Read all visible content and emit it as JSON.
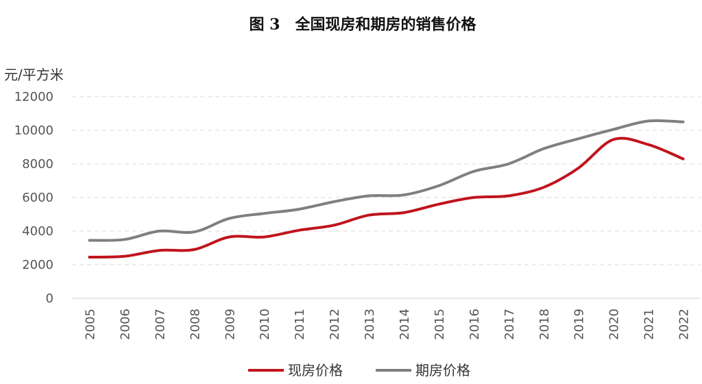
{
  "chart_data": {
    "type": "line",
    "title": "图 3　全国现房和期房的销售价格",
    "ylabel": "元/平方米",
    "xlabel": "",
    "ylim": [
      0,
      12000
    ],
    "yticks": [
      0,
      2000,
      4000,
      6000,
      8000,
      10000,
      12000
    ],
    "categories": [
      "2005",
      "2006",
      "2007",
      "2008",
      "2009",
      "2010",
      "2011",
      "2012",
      "2013",
      "2014",
      "2015",
      "2016",
      "2017",
      "2018",
      "2019",
      "2020",
      "2021",
      "2022"
    ],
    "grid": true,
    "legend_position": "bottom",
    "series": [
      {
        "name": "现房价格",
        "color": "#c0141c",
        "values": [
          2450,
          2500,
          2850,
          2900,
          3650,
          3650,
          4050,
          4350,
          4950,
          5100,
          5600,
          6000,
          6100,
          6600,
          7750,
          9450,
          9150,
          8300
        ]
      },
      {
        "name": "期房价格",
        "color": "#7f7f7f",
        "values": [
          3450,
          3500,
          4000,
          3950,
          4750,
          5050,
          5300,
          5750,
          6100,
          6150,
          6700,
          7550,
          8000,
          8900,
          9500,
          10050,
          10550,
          10500
        ]
      }
    ]
  }
}
